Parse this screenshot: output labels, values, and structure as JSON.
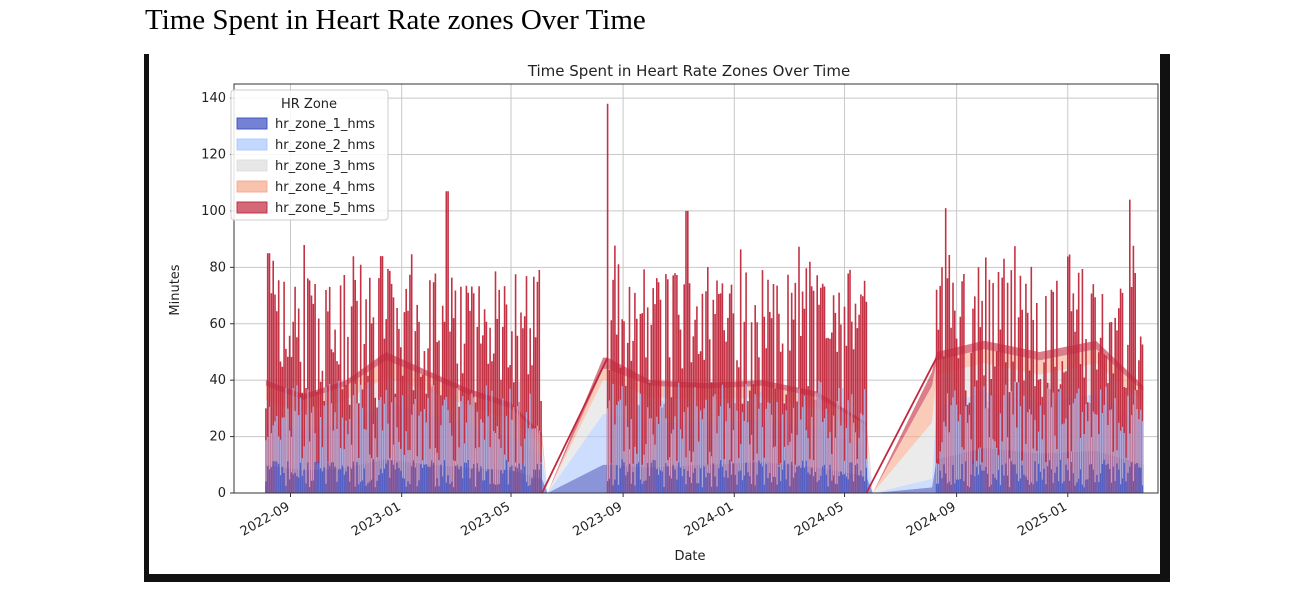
{
  "page": {
    "heading": "Time Spent in Heart Rate zones Over Time"
  },
  "chart_data": {
    "type": "area",
    "stacked": true,
    "title": "Time Spent in Heart Rate Zones Over Time",
    "xlabel": "Date",
    "ylabel": "Minutes",
    "ylim": [
      0,
      145
    ],
    "xlim": [
      "2022-07-01",
      "2025-04-10"
    ],
    "yticks": [
      0,
      20,
      40,
      60,
      80,
      100,
      120,
      140
    ],
    "xtick_labels": [
      "2022-09",
      "2023-01",
      "2023-05",
      "2023-09",
      "2024-01",
      "2024-05",
      "2024-09",
      "2025-01"
    ],
    "xtick_dates": [
      "2022-09-01",
      "2023-01-01",
      "2023-05-01",
      "2023-09-01",
      "2024-01-01",
      "2024-05-01",
      "2024-09-01",
      "2025-01-01"
    ],
    "grid": true,
    "legend": {
      "title": "HR Zone",
      "placement": "top-left"
    },
    "periods": [
      {
        "start": "2022-08-05",
        "end": "2023-06-04"
      },
      {
        "start": "2023-08-15",
        "end": "2024-05-25"
      },
      {
        "start": "2024-08-10",
        "end": "2025-03-25"
      }
    ],
    "series": [
      {
        "name": "hr_zone_1_hms",
        "color": "#3b4cc0",
        "dates": [
          "2022-08-05",
          "2022-09-15",
          "2022-11-01",
          "2022-12-15",
          "2023-02-01",
          "2023-03-15",
          "2023-05-01",
          "2023-06-04",
          "2023-06-10",
          "2023-08-10",
          "2023-08-15",
          "2023-10-01",
          "2023-12-01",
          "2024-02-01",
          "2024-04-01",
          "2024-05-25",
          "2024-06-01",
          "2024-08-05",
          "2024-08-10",
          "2024-10-01",
          "2024-12-01",
          "2025-02-01",
          "2025-03-25"
        ],
        "values": [
          10,
          8,
          9,
          12,
          10,
          9,
          8,
          5,
          0,
          10,
          10,
          9,
          10,
          11,
          9,
          6,
          0,
          2,
          12,
          16,
          14,
          15,
          10
        ]
      },
      {
        "name": "hr_zone_2_hms",
        "color": "#aac7fd",
        "dates": [
          "2022-08-05",
          "2022-09-15",
          "2022-11-01",
          "2022-12-15",
          "2023-02-01",
          "2023-03-15",
          "2023-05-01",
          "2023-06-04",
          "2023-06-10",
          "2023-08-10",
          "2023-08-15",
          "2023-10-01",
          "2023-12-01",
          "2024-02-01",
          "2024-04-01",
          "2024-05-25",
          "2024-06-01",
          "2024-08-05",
          "2024-08-10",
          "2024-10-01",
          "2024-12-01",
          "2025-02-01",
          "2025-03-25"
        ],
        "values": [
          15,
          14,
          16,
          20,
          18,
          15,
          12,
          8,
          0,
          18,
          18,
          16,
          15,
          15,
          14,
          10,
          0,
          3,
          18,
          20,
          18,
          20,
          14
        ]
      },
      {
        "name": "hr_zone_3_hms",
        "color": "#dddddd",
        "dates": [
          "2022-08-05",
          "2022-09-15",
          "2022-11-01",
          "2022-12-15",
          "2023-02-01",
          "2023-03-15",
          "2023-05-01",
          "2023-06-04",
          "2023-06-10",
          "2023-08-10",
          "2023-08-15",
          "2023-10-01",
          "2023-12-01",
          "2024-02-01",
          "2024-04-01",
          "2024-05-25",
          "2024-06-01",
          "2024-08-05",
          "2024-08-10",
          "2024-10-01",
          "2024-12-01",
          "2025-02-01",
          "2025-03-25"
        ],
        "values": [
          8,
          7,
          8,
          9,
          8,
          7,
          6,
          4,
          0,
          12,
          12,
          9,
          8,
          8,
          7,
          5,
          0,
          20,
          12,
          10,
          10,
          11,
          8
        ]
      },
      {
        "name": "hr_zone_4_hms",
        "color": "#f7a889",
        "dates": [
          "2022-08-05",
          "2022-09-15",
          "2022-11-01",
          "2022-12-15",
          "2023-02-01",
          "2023-03-15",
          "2023-05-01",
          "2023-06-04",
          "2023-06-10",
          "2023-08-10",
          "2023-08-15",
          "2023-10-01",
          "2023-12-01",
          "2024-02-01",
          "2024-04-01",
          "2024-05-25",
          "2024-06-01",
          "2024-08-05",
          "2024-08-10",
          "2024-10-01",
          "2024-12-01",
          "2025-02-01",
          "2025-03-25"
        ],
        "values": [
          5,
          4,
          5,
          6,
          5,
          4,
          4,
          3,
          0,
          4,
          4,
          4,
          4,
          4,
          4,
          3,
          0,
          13,
          5,
          5,
          5,
          5,
          4
        ]
      },
      {
        "name": "hr_zone_5_hms",
        "color": "#c0283c",
        "dates": [
          "2022-08-05",
          "2022-09-15",
          "2022-11-01",
          "2022-12-15",
          "2023-02-01",
          "2023-03-15",
          "2023-05-01",
          "2023-06-04",
          "2023-06-10",
          "2023-08-10",
          "2023-08-15",
          "2023-10-01",
          "2023-12-01",
          "2024-02-01",
          "2024-04-01",
          "2024-05-25",
          "2024-06-01",
          "2024-08-05",
          "2024-08-10",
          "2024-10-01",
          "2024-12-01",
          "2025-02-01",
          "2025-03-25"
        ],
        "values": [
          2,
          2,
          2,
          3,
          2,
          2,
          2,
          1,
          0,
          4,
          4,
          2,
          2,
          2,
          2,
          1,
          0,
          5,
          3,
          3,
          3,
          3,
          2
        ]
      }
    ],
    "notable_peaks": [
      {
        "date": "2022-08-08",
        "total": 85
      },
      {
        "date": "2022-12-10",
        "total": 84
      },
      {
        "date": "2023-02-20",
        "total": 107
      },
      {
        "date": "2023-08-15",
        "total": 138
      },
      {
        "date": "2023-11-10",
        "total": 100
      },
      {
        "date": "2024-08-20",
        "total": 101
      },
      {
        "date": "2025-03-10",
        "total": 104
      }
    ]
  }
}
